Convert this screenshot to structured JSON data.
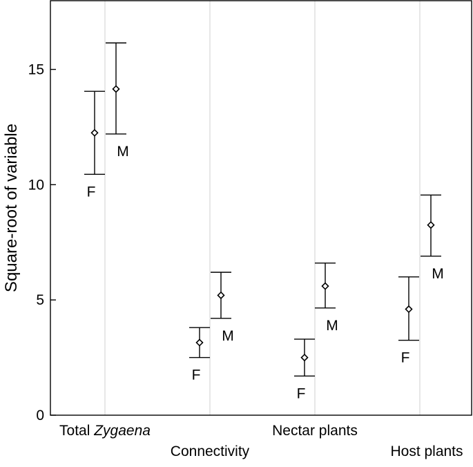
{
  "chart_data": {
    "type": "scatter",
    "subtype": "error-bar",
    "ylabel": "Square-root of variable",
    "xlabel": "",
    "ylim": [
      0,
      18
    ],
    "yticks": [
      0,
      5,
      10,
      15
    ],
    "grid": "vertical",
    "categories": [
      {
        "label": "Total ",
        "label_italic": "Zygaena"
      },
      {
        "label": "Connectivity",
        "label_italic": ""
      },
      {
        "label": "Nectar plants",
        "label_italic": ""
      },
      {
        "label": "Host plants",
        "label_italic": ""
      }
    ],
    "series": [
      {
        "name": "F",
        "means": [
          12.25,
          3.15,
          2.5,
          4.6
        ],
        "lower": [
          10.45,
          2.5,
          1.7,
          3.25
        ],
        "upper": [
          14.05,
          3.8,
          3.3,
          6.0
        ]
      },
      {
        "name": "M",
        "means": [
          14.15,
          5.2,
          5.6,
          8.25
        ],
        "lower": [
          12.2,
          4.2,
          4.65,
          6.9
        ],
        "upper": [
          16.15,
          6.2,
          6.6,
          9.55
        ]
      }
    ]
  }
}
